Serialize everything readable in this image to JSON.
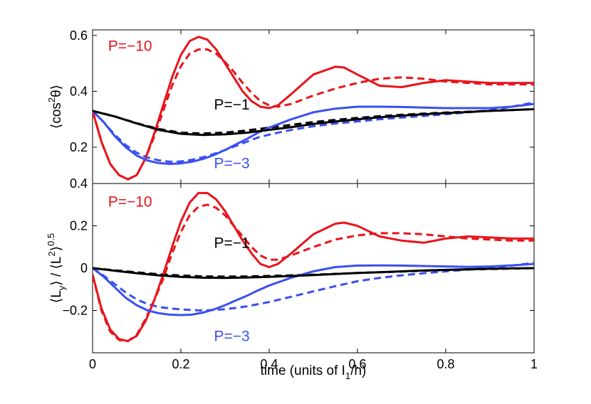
{
  "chart_data": [
    {
      "type": "line",
      "ylabel_main": "⟨cos",
      "ylabel_sup": "2",
      "ylabel_tail": "θ⟩",
      "xlim": [
        0,
        1
      ],
      "ylim": [
        0.07,
        0.62
      ],
      "xticks": [
        0,
        0.2,
        0.4,
        0.6,
        0.8,
        1
      ],
      "xtick_labels": [
        "",
        "",
        "",
        "",
        "",
        ""
      ],
      "yticks": [
        0.2,
        0.4,
        0.6
      ],
      "ytick_labels": [
        "0.2",
        "0.4",
        "0.6"
      ],
      "series": [
        {
          "name": "P=−10",
          "color": "#e8141b",
          "style": "solid",
          "x": [
            0,
            0.02,
            0.04,
            0.06,
            0.08,
            0.1,
            0.12,
            0.14,
            0.16,
            0.18,
            0.2,
            0.22,
            0.24,
            0.26,
            0.28,
            0.3,
            0.32,
            0.34,
            0.36,
            0.38,
            0.4,
            0.42,
            0.45,
            0.5,
            0.55,
            0.57,
            0.6,
            0.65,
            0.7,
            0.75,
            0.8,
            0.85,
            0.9,
            0.95,
            1.0
          ],
          "y": [
            0.33,
            0.22,
            0.14,
            0.1,
            0.085,
            0.1,
            0.16,
            0.25,
            0.35,
            0.45,
            0.53,
            0.58,
            0.595,
            0.585,
            0.55,
            0.5,
            0.45,
            0.4,
            0.365,
            0.345,
            0.34,
            0.35,
            0.39,
            0.46,
            0.488,
            0.485,
            0.46,
            0.42,
            0.415,
            0.43,
            0.44,
            0.435,
            0.43,
            0.43,
            0.43
          ]
        },
        {
          "name": "",
          "color": "#e8141b",
          "style": "dashed",
          "x": [
            0,
            0.02,
            0.04,
            0.06,
            0.08,
            0.1,
            0.12,
            0.14,
            0.16,
            0.18,
            0.2,
            0.22,
            0.24,
            0.26,
            0.28,
            0.3,
            0.32,
            0.34,
            0.36,
            0.38,
            0.4,
            0.42,
            0.45,
            0.5,
            0.55,
            0.6,
            0.65,
            0.7,
            0.75,
            0.8,
            0.85,
            0.9,
            0.95,
            1.0
          ],
          "y": [
            0.33,
            0.22,
            0.14,
            0.1,
            0.085,
            0.1,
            0.16,
            0.24,
            0.33,
            0.42,
            0.49,
            0.535,
            0.55,
            0.55,
            0.535,
            0.505,
            0.47,
            0.43,
            0.395,
            0.365,
            0.35,
            0.345,
            0.355,
            0.385,
            0.41,
            0.43,
            0.445,
            0.45,
            0.445,
            0.435,
            0.43,
            0.425,
            0.425,
            0.425
          ]
        },
        {
          "name": "P=−3",
          "color": "#3a4ff2",
          "style": "solid",
          "x": [
            0,
            0.025,
            0.05,
            0.075,
            0.1,
            0.125,
            0.15,
            0.175,
            0.2,
            0.225,
            0.25,
            0.275,
            0.3,
            0.325,
            0.35,
            0.375,
            0.4,
            0.45,
            0.5,
            0.55,
            0.6,
            0.65,
            0.7,
            0.75,
            0.8,
            0.85,
            0.9,
            0.95,
            1.0
          ],
          "y": [
            0.33,
            0.29,
            0.24,
            0.2,
            0.17,
            0.152,
            0.143,
            0.14,
            0.142,
            0.148,
            0.158,
            0.172,
            0.19,
            0.21,
            0.23,
            0.252,
            0.27,
            0.3,
            0.325,
            0.338,
            0.345,
            0.345,
            0.344,
            0.342,
            0.34,
            0.34,
            0.34,
            0.345,
            0.355
          ]
        },
        {
          "name": "",
          "color": "#3a4ff2",
          "style": "dashed",
          "x": [
            0,
            0.025,
            0.05,
            0.075,
            0.1,
            0.125,
            0.15,
            0.175,
            0.2,
            0.225,
            0.25,
            0.275,
            0.3,
            0.325,
            0.35,
            0.375,
            0.4,
            0.45,
            0.5,
            0.55,
            0.6,
            0.65,
            0.7,
            0.75,
            0.8,
            0.85,
            0.9,
            0.95,
            1.0
          ],
          "y": [
            0.33,
            0.29,
            0.245,
            0.208,
            0.18,
            0.163,
            0.153,
            0.148,
            0.149,
            0.155,
            0.164,
            0.176,
            0.19,
            0.205,
            0.22,
            0.235,
            0.245,
            0.262,
            0.275,
            0.285,
            0.292,
            0.3,
            0.306,
            0.312,
            0.318,
            0.325,
            0.332,
            0.345,
            0.36
          ]
        },
        {
          "name": "P=−1",
          "color": "#000000",
          "style": "solid",
          "x": [
            0,
            0.05,
            0.1,
            0.15,
            0.2,
            0.25,
            0.3,
            0.35,
            0.4,
            0.45,
            0.5,
            0.55,
            0.6,
            0.65,
            0.7,
            0.75,
            0.8,
            0.85,
            0.9,
            0.95,
            1.0
          ],
          "y": [
            0.33,
            0.31,
            0.285,
            0.262,
            0.248,
            0.244,
            0.246,
            0.252,
            0.262,
            0.272,
            0.283,
            0.292,
            0.3,
            0.307,
            0.313,
            0.318,
            0.322,
            0.326,
            0.33,
            0.333,
            0.336
          ]
        },
        {
          "name": "",
          "color": "#000000",
          "style": "dashed",
          "x": [
            0,
            0.05,
            0.1,
            0.15,
            0.2,
            0.25,
            0.3,
            0.35,
            0.4,
            0.45,
            0.5,
            0.55,
            0.6,
            0.65,
            0.7,
            0.75,
            0.8,
            0.85,
            0.9,
            0.95,
            1.0
          ],
          "y": [
            0.33,
            0.31,
            0.286,
            0.265,
            0.252,
            0.249,
            0.252,
            0.26,
            0.27,
            0.28,
            0.29,
            0.298,
            0.305,
            0.311,
            0.316,
            0.32,
            0.324,
            0.327,
            0.33,
            0.333,
            0.336
          ]
        }
      ],
      "annotations": [
        {
          "text": "P=−10",
          "color": "#e8141b",
          "x": 0.035,
          "y": 0.545
        },
        {
          "text": "P=−1",
          "color": "#000000",
          "x": 0.275,
          "y": 0.335
        },
        {
          "text": "P=−3",
          "color": "#3a4ff2",
          "x": 0.275,
          "y": 0.125
        }
      ]
    },
    {
      "type": "line",
      "ylabel_main": "⟨L",
      "ylabel_sub1": "y",
      "ylabel_mid": "⟩ / ⟨L",
      "ylabel_sup": "2",
      "ylabel_tail": "⟩",
      "ylabel_exp": "0.5",
      "xlabel_main": "time (units of I",
      "xlabel_sub": "1",
      "xlabel_tail": "/h)",
      "xlim": [
        0,
        1
      ],
      "ylim": [
        -0.4,
        0.4
      ],
      "xticks": [
        0,
        0.2,
        0.4,
        0.6,
        0.8,
        1
      ],
      "xtick_labels": [
        "0",
        "0.2",
        "0.4",
        "0.6",
        "0.8",
        "1"
      ],
      "yticks": [
        -0.2,
        0,
        0.2,
        0.4
      ],
      "ytick_labels": [
        "−0.2",
        "0",
        "0.2",
        "0.4"
      ],
      "series": [
        {
          "name": "P=−10",
          "color": "#e8141b",
          "style": "solid",
          "x": [
            0,
            0.02,
            0.04,
            0.06,
            0.08,
            0.1,
            0.12,
            0.14,
            0.16,
            0.18,
            0.2,
            0.22,
            0.24,
            0.26,
            0.28,
            0.3,
            0.32,
            0.34,
            0.36,
            0.38,
            0.4,
            0.42,
            0.45,
            0.5,
            0.55,
            0.57,
            0.6,
            0.65,
            0.7,
            0.75,
            0.8,
            0.85,
            0.9,
            0.95,
            1.0
          ],
          "y": [
            -0.03,
            -0.19,
            -0.29,
            -0.335,
            -0.345,
            -0.32,
            -0.25,
            -0.15,
            -0.03,
            0.1,
            0.22,
            0.31,
            0.355,
            0.355,
            0.325,
            0.27,
            0.2,
            0.13,
            0.07,
            0.02,
            0.005,
            0.02,
            0.07,
            0.16,
            0.21,
            0.215,
            0.2,
            0.15,
            0.13,
            0.12,
            0.14,
            0.15,
            0.145,
            0.14,
            0.14
          ]
        },
        {
          "name": "",
          "color": "#e8141b",
          "style": "dashed",
          "x": [
            0,
            0.02,
            0.04,
            0.06,
            0.08,
            0.1,
            0.12,
            0.14,
            0.16,
            0.18,
            0.2,
            0.22,
            0.24,
            0.26,
            0.28,
            0.3,
            0.32,
            0.34,
            0.36,
            0.38,
            0.4,
            0.42,
            0.45,
            0.5,
            0.55,
            0.6,
            0.65,
            0.7,
            0.75,
            0.8,
            0.85,
            0.9,
            0.95,
            1.0
          ],
          "y": [
            -0.03,
            -0.2,
            -0.3,
            -0.34,
            -0.345,
            -0.315,
            -0.24,
            -0.15,
            -0.05,
            0.07,
            0.17,
            0.25,
            0.29,
            0.3,
            0.285,
            0.25,
            0.2,
            0.15,
            0.1,
            0.06,
            0.04,
            0.04,
            0.06,
            0.1,
            0.135,
            0.155,
            0.165,
            0.165,
            0.16,
            0.15,
            0.14,
            0.135,
            0.13,
            0.13
          ]
        },
        {
          "name": "P=−3",
          "color": "#3a4ff2",
          "style": "solid",
          "x": [
            0,
            0.025,
            0.05,
            0.075,
            0.1,
            0.125,
            0.15,
            0.175,
            0.2,
            0.225,
            0.25,
            0.275,
            0.3,
            0.325,
            0.35,
            0.375,
            0.4,
            0.45,
            0.5,
            0.55,
            0.6,
            0.65,
            0.7,
            0.75,
            0.8,
            0.85,
            0.9,
            0.95,
            1.0
          ],
          "y": [
            0,
            -0.04,
            -0.09,
            -0.14,
            -0.175,
            -0.2,
            -0.213,
            -0.22,
            -0.222,
            -0.22,
            -0.21,
            -0.195,
            -0.175,
            -0.152,
            -0.13,
            -0.105,
            -0.082,
            -0.045,
            -0.015,
            0.005,
            0.012,
            0.013,
            0.012,
            0.01,
            0.008,
            0.006,
            0.008,
            0.013,
            0.02
          ]
        },
        {
          "name": "",
          "color": "#3a4ff2",
          "style": "dashed",
          "x": [
            0,
            0.025,
            0.05,
            0.075,
            0.1,
            0.125,
            0.15,
            0.175,
            0.2,
            0.225,
            0.25,
            0.275,
            0.3,
            0.325,
            0.35,
            0.375,
            0.4,
            0.45,
            0.5,
            0.55,
            0.6,
            0.65,
            0.7,
            0.75,
            0.8,
            0.85,
            0.9,
            0.95,
            1.0
          ],
          "y": [
            0,
            -0.035,
            -0.075,
            -0.115,
            -0.148,
            -0.17,
            -0.184,
            -0.19,
            -0.195,
            -0.198,
            -0.2,
            -0.198,
            -0.194,
            -0.188,
            -0.18,
            -0.17,
            -0.16,
            -0.135,
            -0.11,
            -0.085,
            -0.062,
            -0.046,
            -0.034,
            -0.024,
            -0.015,
            -0.007,
            0.002,
            0.012,
            0.025
          ]
        },
        {
          "name": "P=−1",
          "color": "#000000",
          "style": "solid",
          "x": [
            0,
            0.05,
            0.1,
            0.15,
            0.2,
            0.25,
            0.3,
            0.35,
            0.4,
            0.45,
            0.5,
            0.55,
            0.6,
            0.65,
            0.7,
            0.75,
            0.8,
            0.85,
            0.9,
            0.95,
            1.0
          ],
          "y": [
            0,
            -0.012,
            -0.024,
            -0.034,
            -0.041,
            -0.045,
            -0.046,
            -0.044,
            -0.041,
            -0.037,
            -0.033,
            -0.028,
            -0.023,
            -0.019,
            -0.015,
            -0.011,
            -0.008,
            -0.005,
            -0.003,
            -0.001,
            0.0
          ]
        },
        {
          "name": "",
          "color": "#000000",
          "style": "dashed",
          "x": [
            0,
            0.05,
            0.1,
            0.15,
            0.2,
            0.25,
            0.3,
            0.35,
            0.4,
            0.45,
            0.5,
            0.55,
            0.6,
            0.65,
            0.7,
            0.75,
            0.8,
            0.85,
            0.9,
            0.95,
            1.0
          ],
          "y": [
            0,
            -0.01,
            -0.02,
            -0.029,
            -0.035,
            -0.039,
            -0.04,
            -0.039,
            -0.037,
            -0.034,
            -0.031,
            -0.027,
            -0.023,
            -0.019,
            -0.016,
            -0.012,
            -0.009,
            -0.006,
            -0.004,
            -0.002,
            0.0
          ]
        }
      ],
      "annotations": [
        {
          "text": "P=−10",
          "color": "#e8141b",
          "x": 0.035,
          "y": 0.29
        },
        {
          "text": "P=−1",
          "color": "#000000",
          "x": 0.275,
          "y": 0.095
        },
        {
          "text": "P=−3",
          "color": "#3a4ff2",
          "x": 0.275,
          "y": -0.345
        }
      ]
    }
  ]
}
